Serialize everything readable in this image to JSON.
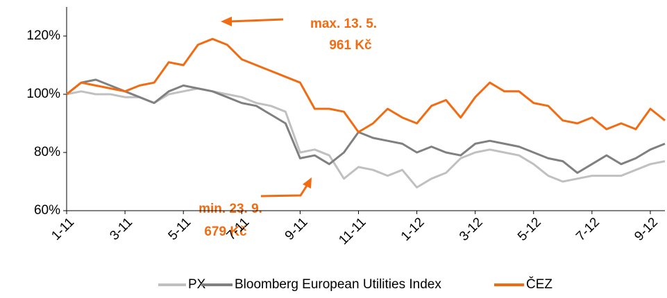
{
  "chart_data": {
    "type": "line",
    "x": [
      0,
      0.5,
      1,
      1.5,
      2,
      2.5,
      3,
      3.5,
      4,
      4.5,
      5,
      5.5,
      6,
      6.5,
      7,
      7.5,
      8,
      8.5,
      9,
      9.5,
      10,
      10.5,
      11,
      11.5,
      12,
      12.5,
      13,
      13.5,
      14,
      14.5,
      15,
      15.5,
      16,
      16.5,
      17,
      17.5,
      18,
      18.5,
      19,
      19.5,
      20,
      20.5
    ],
    "series": [
      {
        "name": "PX",
        "color": "#c0c0c0",
        "values": [
          100,
          101,
          100,
          100,
          99,
          99,
          97,
          100,
          101,
          102,
          101,
          100,
          99,
          97,
          96,
          94,
          80,
          81,
          79,
          71,
          75,
          74,
          72,
          74,
          68,
          71,
          73,
          78,
          80,
          81,
          80,
          79,
          76,
          72,
          70,
          71,
          72,
          72,
          72,
          74,
          76,
          77
        ]
      },
      {
        "name": "Bloomberg European Utilities Index",
        "color": "#808080",
        "values": [
          100,
          104,
          105,
          103,
          101,
          99,
          97,
          101,
          103,
          102,
          101,
          99,
          97,
          96,
          93,
          90,
          78,
          79,
          76,
          80,
          87,
          85,
          84,
          83,
          80,
          82,
          80,
          79,
          83,
          84,
          83,
          82,
          80,
          78,
          77,
          73,
          76,
          79,
          76,
          78,
          81,
          83
        ]
      },
      {
        "name": "ČEZ",
        "color": "#f26b11",
        "values": [
          100,
          104,
          103,
          102,
          101,
          103,
          104,
          111,
          110,
          117,
          119,
          117,
          112,
          110,
          108,
          106,
          104,
          95,
          95,
          94,
          87,
          90,
          95,
          92,
          90,
          96,
          98,
          92,
          99,
          104,
          101,
          101,
          97,
          96,
          91,
          90,
          92,
          88,
          90,
          88,
          95,
          91
        ]
      }
    ],
    "xlim": [
      0,
      20.5
    ],
    "xticks": [
      {
        "value": 0,
        "label": "1-11"
      },
      {
        "value": 2,
        "label": "3-11"
      },
      {
        "value": 4,
        "label": "5-11"
      },
      {
        "value": 6,
        "label": "7-11"
      },
      {
        "value": 8,
        "label": "9-11"
      },
      {
        "value": 10,
        "label": "11-11"
      },
      {
        "value": 12,
        "label": "1-12"
      },
      {
        "value": 14,
        "label": "3-12"
      },
      {
        "value": 16,
        "label": "5-12"
      },
      {
        "value": 18,
        "label": "7-12"
      },
      {
        "value": 20,
        "label": "9-12"
      }
    ],
    "ylim": [
      60,
      130
    ],
    "yticks": [
      {
        "value": 60,
        "label": "60%"
      },
      {
        "value": 80,
        "label": "80%"
      },
      {
        "value": 100,
        "label": "100%"
      },
      {
        "value": 120,
        "label": "120%"
      }
    ],
    "annotations": [
      "max. 13. 5.",
      "961 Kč",
      "min. 23. 9.",
      "679 Kč"
    ]
  }
}
